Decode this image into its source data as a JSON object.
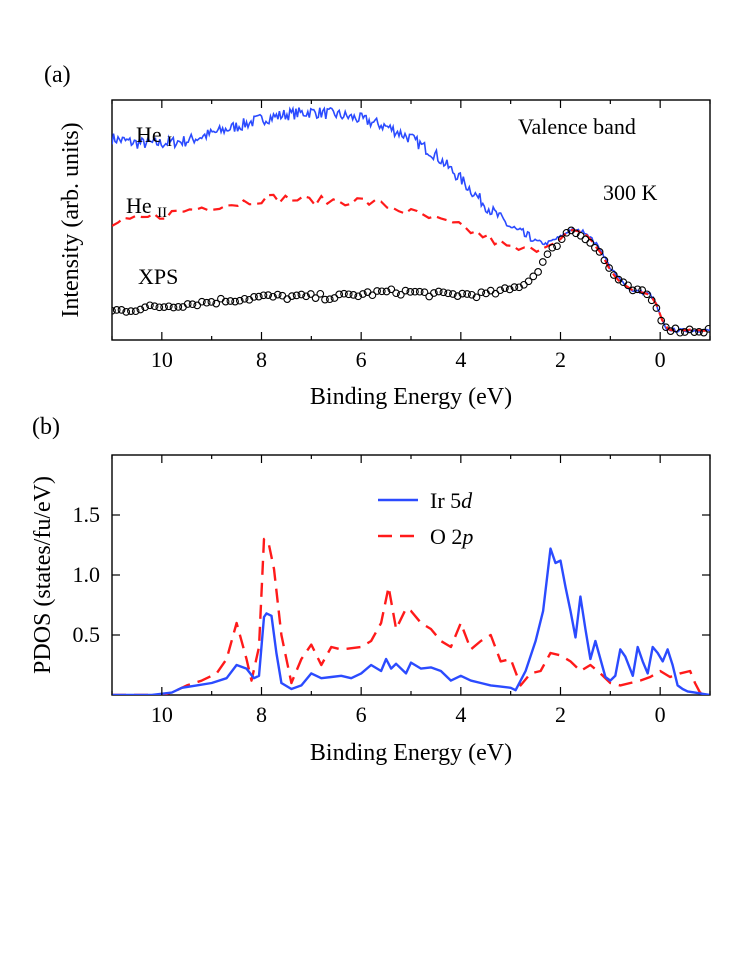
{
  "chart_data": [
    {
      "panel_label": "(a)",
      "type": "line",
      "title": "",
      "xlabel": "Binding Energy (eV)",
      "ylabel": "Intensity (arb. units)",
      "xlim": [
        11,
        -1
      ],
      "ylim": [
        0,
        1
      ],
      "x_ticks": [
        10,
        8,
        6,
        4,
        2,
        0
      ],
      "x_tick_labels": [
        "10",
        "8",
        "6",
        "4",
        "2",
        "0"
      ],
      "annotations": [
        "Valence band",
        "300 K"
      ],
      "series": [
        {
          "name": "He",
          "subscript": "I",
          "style": "solid",
          "color": "#2b4bff",
          "x": [
            11.0,
            10.5,
            10.0,
            9.5,
            9.0,
            8.5,
            8.0,
            7.5,
            7.0,
            6.5,
            6.0,
            5.5,
            5.0,
            4.5,
            4.0,
            3.5,
            3.0,
            2.6,
            2.3,
            2.0,
            1.8,
            1.5,
            1.2,
            1.0,
            0.8,
            0.6,
            0.4,
            0.2,
            0.1,
            0.0,
            -0.1,
            -0.3,
            -0.6,
            -1.0
          ],
          "values": [
            0.84,
            0.82,
            0.82,
            0.83,
            0.86,
            0.89,
            0.92,
            0.94,
            0.95,
            0.94,
            0.92,
            0.89,
            0.84,
            0.77,
            0.67,
            0.56,
            0.47,
            0.42,
            0.4,
            0.43,
            0.46,
            0.45,
            0.38,
            0.3,
            0.25,
            0.21,
            0.2,
            0.19,
            0.16,
            0.1,
            0.05,
            0.04,
            0.04,
            0.04
          ]
        },
        {
          "name": "He",
          "subscript": "II",
          "style": "dashed",
          "color": "#ff1a1a",
          "x": [
            11.0,
            10.5,
            10.0,
            9.5,
            9.0,
            8.5,
            8.0,
            7.5,
            7.0,
            6.5,
            6.0,
            5.5,
            5.0,
            4.5,
            4.0,
            3.5,
            3.0,
            2.5,
            2.0,
            1.8,
            1.5,
            1.2,
            1.0,
            0.8,
            0.6,
            0.4,
            0.2,
            0.1,
            0.0,
            -0.1,
            -0.3,
            -0.6,
            -1.0
          ],
          "values": [
            0.48,
            0.5,
            0.52,
            0.54,
            0.56,
            0.57,
            0.59,
            0.59,
            0.58,
            0.58,
            0.58,
            0.56,
            0.53,
            0.5,
            0.47,
            0.43,
            0.38,
            0.37,
            0.42,
            0.46,
            0.44,
            0.37,
            0.29,
            0.24,
            0.21,
            0.2,
            0.19,
            0.16,
            0.1,
            0.05,
            0.04,
            0.04,
            0.04
          ]
        },
        {
          "name": "XPS",
          "style": "open circles",
          "color": "#000000",
          "x": [
            11.0,
            10.5,
            10.0,
            9.5,
            9.0,
            8.5,
            8.0,
            7.5,
            7.0,
            6.5,
            6.0,
            5.5,
            5.0,
            4.5,
            4.0,
            3.5,
            3.0,
            2.6,
            2.3,
            2.0,
            1.8,
            1.5,
            1.2,
            1.0,
            0.8,
            0.6,
            0.4,
            0.2,
            0.0,
            -0.1,
            -0.3,
            -0.6,
            -1.0
          ],
          "values": [
            0.12,
            0.13,
            0.14,
            0.15,
            0.16,
            0.17,
            0.18,
            0.18,
            0.18,
            0.18,
            0.19,
            0.2,
            0.2,
            0.19,
            0.19,
            0.19,
            0.21,
            0.25,
            0.34,
            0.42,
            0.46,
            0.43,
            0.36,
            0.29,
            0.24,
            0.21,
            0.2,
            0.18,
            0.1,
            0.06,
            0.04,
            0.04,
            0.04
          ]
        }
      ]
    },
    {
      "panel_label": "(b)",
      "type": "line",
      "title": "",
      "xlabel": "Binding Energy (eV)",
      "ylabel": "PDOS (states/fu/eV)",
      "xlim": [
        11,
        -1
      ],
      "ylim": [
        0,
        2.0
      ],
      "x_ticks": [
        10,
        8,
        6,
        4,
        2,
        0
      ],
      "x_tick_labels": [
        "10",
        "8",
        "6",
        "4",
        "2",
        "0"
      ],
      "y_ticks": [
        0.5,
        1.0,
        1.5
      ],
      "y_tick_labels": [
        "0.5",
        "1.0",
        "1.5"
      ],
      "legend_position": "top-center",
      "series": [
        {
          "name": "Ir 5",
          "name_italic": "d",
          "style": "solid",
          "color": "#2b4bff",
          "x": [
            11.0,
            10.2,
            9.8,
            9.6,
            9.3,
            9.0,
            8.7,
            8.5,
            8.3,
            8.15,
            8.05,
            7.95,
            7.9,
            7.8,
            7.7,
            7.6,
            7.4,
            7.2,
            7.0,
            6.8,
            6.6,
            6.4,
            6.2,
            6.0,
            5.8,
            5.6,
            5.5,
            5.4,
            5.3,
            5.1,
            5.0,
            4.8,
            4.6,
            4.4,
            4.2,
            4.0,
            3.8,
            3.6,
            3.4,
            3.2,
            3.0,
            2.9,
            2.7,
            2.5,
            2.35,
            2.2,
            2.1,
            2.0,
            1.9,
            1.8,
            1.7,
            1.6,
            1.5,
            1.4,
            1.3,
            1.2,
            1.1,
            1.0,
            0.9,
            0.8,
            0.7,
            0.55,
            0.45,
            0.35,
            0.25,
            0.15,
            0.05,
            -0.05,
            -0.15,
            -0.25,
            -0.35,
            -0.45,
            -0.55,
            -0.7,
            -0.85,
            -1.0
          ],
          "values": [
            0.0,
            0.0,
            0.02,
            0.06,
            0.08,
            0.1,
            0.14,
            0.25,
            0.22,
            0.14,
            0.16,
            0.65,
            0.68,
            0.66,
            0.35,
            0.1,
            0.05,
            0.08,
            0.18,
            0.14,
            0.15,
            0.16,
            0.14,
            0.18,
            0.25,
            0.2,
            0.3,
            0.22,
            0.26,
            0.18,
            0.27,
            0.22,
            0.23,
            0.2,
            0.12,
            0.16,
            0.12,
            0.1,
            0.08,
            0.07,
            0.06,
            0.04,
            0.2,
            0.45,
            0.7,
            1.22,
            1.1,
            1.12,
            0.9,
            0.7,
            0.48,
            0.82,
            0.55,
            0.3,
            0.45,
            0.3,
            0.15,
            0.12,
            0.16,
            0.38,
            0.32,
            0.16,
            0.4,
            0.28,
            0.18,
            0.4,
            0.35,
            0.28,
            0.38,
            0.25,
            0.08,
            0.05,
            0.03,
            0.02,
            0.01,
            0.0
          ]
        },
        {
          "name": "O 2",
          "name_italic": "p",
          "style": "dashed",
          "color": "#ff1a1a",
          "x": [
            11.0,
            10.0,
            9.8,
            9.5,
            9.2,
            8.9,
            8.7,
            8.5,
            8.3,
            8.2,
            8.05,
            7.95,
            7.85,
            7.75,
            7.6,
            7.4,
            7.2,
            7.0,
            6.8,
            6.6,
            6.4,
            6.0,
            5.8,
            5.6,
            5.45,
            5.3,
            5.1,
            5.0,
            4.8,
            4.6,
            4.4,
            4.2,
            4.0,
            3.8,
            3.6,
            3.4,
            3.2,
            3.0,
            2.8,
            2.6,
            2.4,
            2.2,
            2.0,
            1.8,
            1.6,
            1.4,
            1.2,
            1.0,
            0.8,
            0.6,
            0.4,
            0.2,
            0.0,
            -0.2,
            -0.4,
            -0.6,
            -0.7,
            -0.8,
            -1.0
          ],
          "values": [
            0.0,
            0.0,
            0.02,
            0.08,
            0.12,
            0.18,
            0.3,
            0.6,
            0.3,
            0.12,
            0.4,
            1.3,
            1.25,
            1.05,
            0.5,
            0.1,
            0.3,
            0.42,
            0.25,
            0.4,
            0.38,
            0.4,
            0.45,
            0.6,
            0.9,
            0.55,
            0.72,
            0.7,
            0.6,
            0.55,
            0.45,
            0.4,
            0.6,
            0.38,
            0.45,
            0.5,
            0.28,
            0.3,
            0.08,
            0.18,
            0.2,
            0.35,
            0.33,
            0.28,
            0.2,
            0.25,
            0.18,
            0.1,
            0.08,
            0.1,
            0.12,
            0.15,
            0.2,
            0.15,
            0.18,
            0.2,
            0.1,
            0.02,
            0.0
          ]
        }
      ]
    }
  ]
}
